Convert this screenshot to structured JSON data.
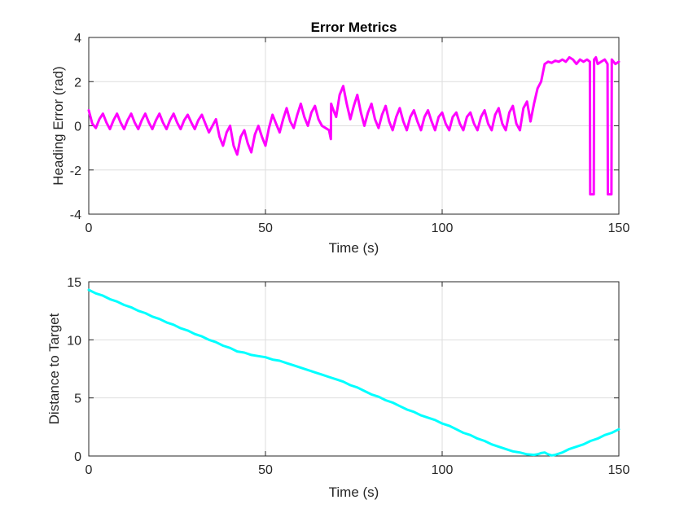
{
  "chart_data": [
    {
      "type": "line",
      "title": "Error Metrics",
      "xlabel": "Time (s)",
      "ylabel": "Heading Error (rad)",
      "xlim": [
        0,
        150
      ],
      "ylim": [
        -4,
        4
      ],
      "xticks": [
        0,
        50,
        100,
        150
      ],
      "yticks": [
        -4,
        -2,
        0,
        2,
        4
      ],
      "grid": true,
      "color": "#ff00ff",
      "series": [
        {
          "x": [
            0,
            1,
            2,
            3,
            4,
            5,
            6,
            7,
            8,
            9,
            10,
            11,
            12,
            13,
            14,
            15,
            16,
            17,
            18,
            19,
            20,
            21,
            22,
            23,
            24,
            25,
            26,
            27,
            28,
            29,
            30,
            31,
            32,
            33,
            34,
            35,
            36,
            37,
            38,
            39,
            40,
            41,
            42,
            43,
            44,
            45,
            46,
            47,
            48,
            49,
            50,
            51,
            52,
            53,
            54,
            55,
            56,
            57,
            58,
            59,
            60,
            61,
            62,
            63,
            64,
            65,
            66,
            67,
            68,
            68.5,
            68.6,
            69,
            70,
            71,
            72,
            73,
            74,
            75,
            76,
            77,
            78,
            79,
            80,
            81,
            82,
            83,
            84,
            85,
            86,
            87,
            88,
            89,
            90,
            91,
            92,
            93,
            94,
            95,
            96,
            97,
            98,
            99,
            100,
            101,
            102,
            103,
            104,
            105,
            106,
            107,
            108,
            109,
            110,
            111,
            112,
            113,
            114,
            115,
            116,
            117,
            118,
            119,
            120,
            121,
            122,
            123,
            124,
            125,
            126,
            127,
            128,
            129,
            130,
            131,
            132,
            133,
            134,
            135,
            136,
            137,
            138,
            139,
            140,
            141,
            141.8,
            141.9,
            142.9,
            143,
            143.5,
            144,
            145,
            146,
            146.8,
            146.9,
            147.9,
            148,
            149,
            150
          ],
          "y": [
            0.7,
            0.1,
            -0.1,
            0.3,
            0.55,
            0.15,
            -0.15,
            0.25,
            0.55,
            0.15,
            -0.15,
            0.25,
            0.55,
            0.15,
            -0.15,
            0.25,
            0.55,
            0.15,
            -0.15,
            0.25,
            0.55,
            0.15,
            -0.15,
            0.25,
            0.55,
            0.15,
            -0.15,
            0.25,
            0.5,
            0.15,
            -0.15,
            0.25,
            0.5,
            0.1,
            -0.3,
            0.0,
            0.3,
            -0.5,
            -0.9,
            -0.3,
            0.0,
            -0.9,
            -1.3,
            -0.5,
            -0.2,
            -0.8,
            -1.2,
            -0.4,
            0.0,
            -0.5,
            -0.9,
            -0.1,
            0.5,
            0.1,
            -0.3,
            0.3,
            0.8,
            0.2,
            -0.1,
            0.5,
            1.0,
            0.4,
            0.0,
            0.6,
            0.9,
            0.3,
            0.0,
            -0.1,
            -0.2,
            -0.6,
            1.0,
            0.8,
            0.4,
            1.4,
            1.8,
            1.0,
            0.3,
            0.9,
            1.4,
            0.6,
            0.0,
            0.6,
            1.0,
            0.3,
            -0.1,
            0.5,
            0.9,
            0.2,
            -0.2,
            0.4,
            0.8,
            0.2,
            -0.2,
            0.4,
            0.7,
            0.2,
            -0.2,
            0.4,
            0.7,
            0.2,
            -0.2,
            0.4,
            0.6,
            0.1,
            -0.2,
            0.4,
            0.6,
            0.1,
            -0.2,
            0.4,
            0.6,
            0.1,
            -0.2,
            0.4,
            0.7,
            0.1,
            -0.2,
            0.5,
            0.8,
            0.1,
            -0.2,
            0.6,
            0.9,
            0.1,
            -0.2,
            0.8,
            1.1,
            0.2,
            1.0,
            1.7,
            2.0,
            2.8,
            2.9,
            2.85,
            2.95,
            2.9,
            3.0,
            2.9,
            3.1,
            3.0,
            2.8,
            3.0,
            2.9,
            3.0,
            2.9,
            -3.1,
            -3.1,
            3.0,
            3.1,
            2.8,
            2.9,
            3.0,
            2.8,
            -3.1,
            -3.1,
            3.0,
            2.8,
            2.9
          ]
        }
      ]
    },
    {
      "type": "line",
      "xlabel": "Time (s)",
      "ylabel": "Distance to Target",
      "xlim": [
        0,
        150
      ],
      "ylim": [
        0,
        15
      ],
      "xticks": [
        0,
        50,
        100,
        150
      ],
      "yticks": [
        0,
        5,
        10,
        15
      ],
      "grid": true,
      "color": "#00ffff",
      "series": [
        {
          "x": [
            0,
            2,
            4,
            6,
            8,
            10,
            12,
            14,
            16,
            18,
            20,
            22,
            24,
            26,
            28,
            30,
            32,
            34,
            36,
            38,
            40,
            42,
            44,
            46,
            48,
            50,
            52,
            54,
            56,
            58,
            60,
            62,
            64,
            66,
            68,
            70,
            72,
            74,
            76,
            78,
            80,
            82,
            84,
            86,
            88,
            90,
            92,
            94,
            96,
            98,
            100,
            102,
            104,
            106,
            108,
            110,
            112,
            114,
            116,
            118,
            120,
            122,
            124,
            126,
            127,
            128,
            129,
            130,
            131,
            132,
            134,
            136,
            138,
            140,
            142,
            144,
            146,
            148,
            150
          ],
          "y": [
            14.3,
            14.0,
            13.8,
            13.5,
            13.3,
            13.0,
            12.8,
            12.5,
            12.3,
            12.0,
            11.8,
            11.5,
            11.3,
            11.0,
            10.8,
            10.5,
            10.3,
            10.0,
            9.8,
            9.5,
            9.3,
            9.0,
            8.9,
            8.7,
            8.6,
            8.5,
            8.3,
            8.2,
            8.0,
            7.8,
            7.6,
            7.4,
            7.2,
            7.0,
            6.8,
            6.6,
            6.4,
            6.1,
            5.9,
            5.6,
            5.3,
            5.1,
            4.8,
            4.6,
            4.3,
            4.0,
            3.8,
            3.5,
            3.3,
            3.1,
            2.8,
            2.6,
            2.3,
            2.0,
            1.8,
            1.5,
            1.3,
            1.0,
            0.8,
            0.6,
            0.4,
            0.3,
            0.15,
            0.1,
            0.15,
            0.25,
            0.3,
            0.15,
            0.05,
            0.1,
            0.3,
            0.6,
            0.8,
            1.0,
            1.3,
            1.5,
            1.8,
            2.0,
            2.3
          ]
        }
      ]
    }
  ]
}
